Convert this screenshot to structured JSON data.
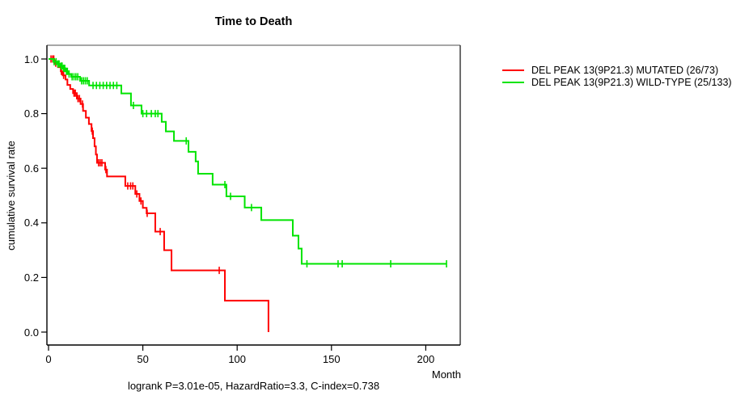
{
  "chart_data": {
    "type": "line",
    "subtype": "kaplan-meier-step",
    "title": "Time to Death",
    "xlabel": "Month",
    "ylabel": "cumulative survival rate",
    "xlim": [
      0,
      218
    ],
    "ylim": [
      0.0,
      1.0
    ],
    "x_ticks": [
      0,
      50,
      100,
      150,
      200
    ],
    "y_ticks": [
      0.0,
      0.2,
      0.4,
      0.6,
      0.8,
      1.0
    ],
    "grid": false,
    "legend_position": "right-outside",
    "footnote": "logrank P=3.01e-05, HazardRatio=3.3, C-index=0.738",
    "box_colors": {
      "top": "#8a8a8a",
      "right": "#2f2f2f",
      "left": "#000000",
      "bottom": "#000000"
    },
    "series": [
      {
        "key": "mutated",
        "name": "DEL PEAK 13(9P21.3) MUTATED (26/73)",
        "color": "#ff0000",
        "steps": [
          [
            0,
            1.0
          ],
          [
            3,
            0.985
          ],
          [
            5,
            0.97
          ],
          [
            6.5,
            0.955
          ],
          [
            7.5,
            0.94
          ],
          [
            9,
            0.925
          ],
          [
            10,
            0.905
          ],
          [
            11.5,
            0.89
          ],
          [
            13,
            0.875
          ],
          [
            15,
            0.855
          ],
          [
            17,
            0.835
          ],
          [
            18.3,
            0.81
          ],
          [
            19.8,
            0.785
          ],
          [
            21.4,
            0.762
          ],
          [
            22.8,
            0.736
          ],
          [
            23.6,
            0.71
          ],
          [
            24.4,
            0.68
          ],
          [
            25.1,
            0.65
          ],
          [
            25.7,
            0.62
          ],
          [
            30,
            0.595
          ],
          [
            31,
            0.57
          ],
          [
            40.7,
            0.535
          ],
          [
            46,
            0.506
          ],
          [
            48.2,
            0.48
          ],
          [
            50,
            0.455
          ],
          [
            52,
            0.435
          ],
          [
            56.6,
            0.368
          ],
          [
            61.3,
            0.3
          ],
          [
            65.2,
            0.226
          ],
          [
            93.5,
            0.115
          ],
          [
            116.6,
            0.0
          ]
        ],
        "censors": [
          [
            1.3,
            1.0
          ],
          [
            2.2,
            1.0
          ],
          [
            2.8,
            1.0
          ],
          [
            3.8,
            0.985
          ],
          [
            6.8,
            0.955
          ],
          [
            8.0,
            0.94
          ],
          [
            13.5,
            0.875
          ],
          [
            14.2,
            0.875
          ],
          [
            15.6,
            0.855
          ],
          [
            16.4,
            0.855
          ],
          [
            18.0,
            0.835
          ],
          [
            23.2,
            0.736
          ],
          [
            26.5,
            0.62
          ],
          [
            27.4,
            0.62
          ],
          [
            28.3,
            0.62
          ],
          [
            30.4,
            0.595
          ],
          [
            42,
            0.535
          ],
          [
            43.5,
            0.535
          ],
          [
            44.7,
            0.535
          ],
          [
            46.8,
            0.506
          ],
          [
            49,
            0.48
          ],
          [
            52.3,
            0.435
          ],
          [
            59.2,
            0.368
          ],
          [
            90.5,
            0.226
          ]
        ]
      },
      {
        "key": "wild-type",
        "name": "DEL PEAK 13(9P21.3) WILD-TYPE (25/133)",
        "color": "#00e400",
        "steps": [
          [
            0,
            1.0
          ],
          [
            2.5,
            0.99
          ],
          [
            4.5,
            0.982
          ],
          [
            6,
            0.974
          ],
          [
            7.5,
            0.966
          ],
          [
            9,
            0.955
          ],
          [
            10.5,
            0.945
          ],
          [
            12,
            0.935
          ],
          [
            16.7,
            0.92
          ],
          [
            21.5,
            0.903
          ],
          [
            38.6,
            0.874
          ],
          [
            43.7,
            0.83
          ],
          [
            49.3,
            0.8
          ],
          [
            60,
            0.77
          ],
          [
            62.2,
            0.735
          ],
          [
            66.5,
            0.7
          ],
          [
            74.2,
            0.66
          ],
          [
            78,
            0.625
          ],
          [
            79.3,
            0.58
          ],
          [
            87,
            0.54
          ],
          [
            94.3,
            0.497
          ],
          [
            104,
            0.456
          ],
          [
            112.8,
            0.41
          ],
          [
            129.5,
            0.353
          ],
          [
            132.5,
            0.306
          ],
          [
            134.2,
            0.25
          ],
          [
            211,
            0.25
          ]
        ],
        "censors": [
          [
            3,
            0.99
          ],
          [
            4,
            0.99
          ],
          [
            5,
            0.982
          ],
          [
            5.6,
            0.982
          ],
          [
            6.6,
            0.974
          ],
          [
            7.2,
            0.974
          ],
          [
            8,
            0.966
          ],
          [
            8.6,
            0.966
          ],
          [
            9.5,
            0.955
          ],
          [
            10,
            0.955
          ],
          [
            10.9,
            0.945
          ],
          [
            12.5,
            0.935
          ],
          [
            13.5,
            0.935
          ],
          [
            14.5,
            0.935
          ],
          [
            15.5,
            0.935
          ],
          [
            17.5,
            0.92
          ],
          [
            18.5,
            0.92
          ],
          [
            19.5,
            0.92
          ],
          [
            20.5,
            0.92
          ],
          [
            23.6,
            0.903
          ],
          [
            25.4,
            0.903
          ],
          [
            27.2,
            0.903
          ],
          [
            29,
            0.903
          ],
          [
            30.8,
            0.903
          ],
          [
            32.6,
            0.903
          ],
          [
            34.4,
            0.903
          ],
          [
            36.2,
            0.903
          ],
          [
            45,
            0.83
          ],
          [
            50,
            0.8
          ],
          [
            52,
            0.8
          ],
          [
            54.5,
            0.8
          ],
          [
            56.6,
            0.8
          ],
          [
            58,
            0.8
          ],
          [
            73,
            0.7
          ],
          [
            93.5,
            0.54
          ],
          [
            96.5,
            0.497
          ],
          [
            107.6,
            0.456
          ],
          [
            137,
            0.25
          ],
          [
            153.5,
            0.25
          ],
          [
            155.7,
            0.25
          ],
          [
            181.4,
            0.25
          ],
          [
            211,
            0.25
          ]
        ]
      }
    ]
  }
}
